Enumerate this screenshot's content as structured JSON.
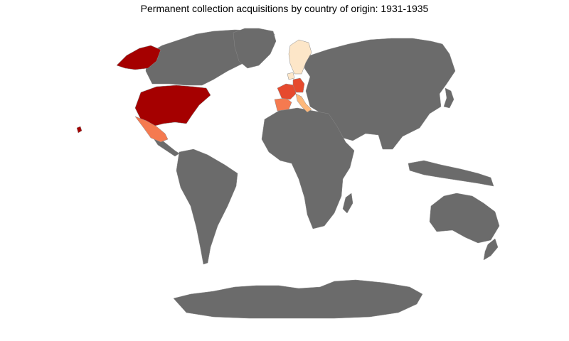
{
  "title": "Permanent collection acquisitions by country of origin: 1931-1935",
  "colors": {
    "background": "#ffffff",
    "no_data": "#6b6b6b",
    "tier_highest": "#a50000",
    "tier_high": "#e64a2e",
    "tier_mid": "#f57a50",
    "tier_low": "#fdb77a",
    "tier_lowest": "#fde6c8"
  },
  "map_data": {
    "type": "choropleth",
    "projection": "world",
    "highlighted_regions": [
      {
        "region": "United States",
        "tier": "tier_highest"
      },
      {
        "region": "France",
        "tier": "tier_high"
      },
      {
        "region": "Germany",
        "tier": "tier_high"
      },
      {
        "region": "Mexico",
        "tier": "tier_mid"
      },
      {
        "region": "Spain",
        "tier": "tier_mid"
      },
      {
        "region": "Italy",
        "tier": "tier_low"
      },
      {
        "region": "Norway",
        "tier": "tier_lowest"
      },
      {
        "region": "Sweden",
        "tier": "tier_lowest"
      },
      {
        "region": "Netherlands",
        "tier": "tier_lowest"
      }
    ]
  }
}
